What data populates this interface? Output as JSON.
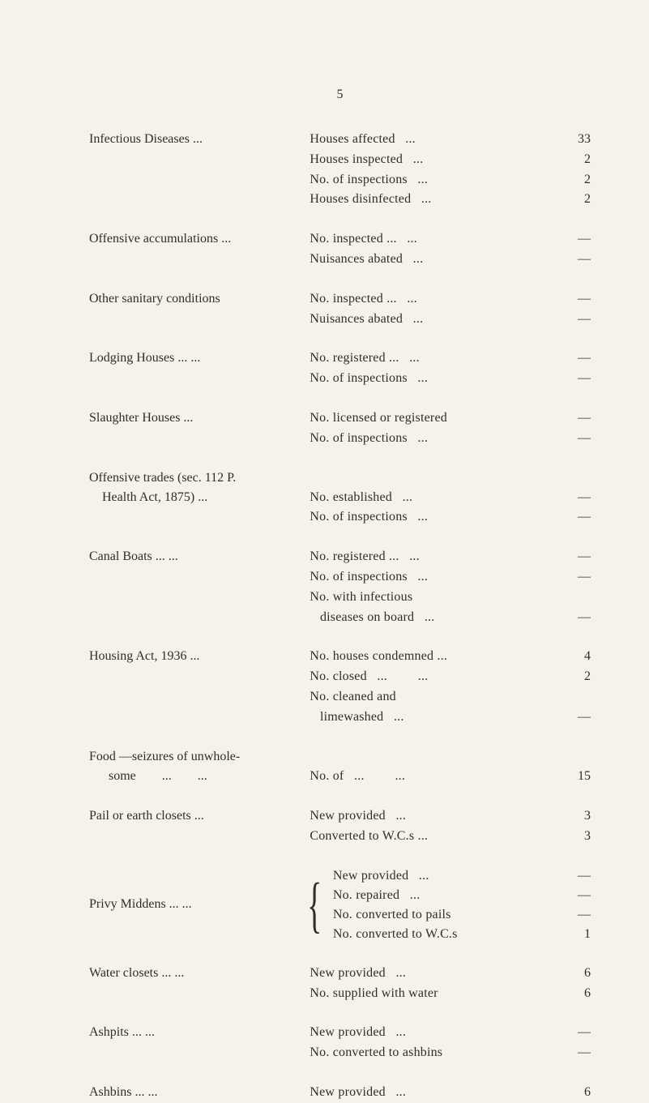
{
  "page_number": "5",
  "sections": [
    {
      "left": "Infectious Diseases",
      "left_trail": "...",
      "lines": [
        {
          "label": "Houses affected",
          "trail": "...",
          "value": "33"
        },
        {
          "label": "Houses inspected",
          "trail": "...",
          "value": "2"
        },
        {
          "label": "No. of inspections",
          "trail": "...",
          "value": "2"
        },
        {
          "label": "Houses disinfected",
          "trail": "...",
          "value": "2"
        }
      ]
    },
    {
      "left": "Offensive accumulations ...",
      "left_trail": "",
      "lines": [
        {
          "label": "No. inspected ...",
          "trail": "...",
          "value": "—"
        },
        {
          "label": "Nuisances abated",
          "trail": "...",
          "value": "—"
        }
      ]
    },
    {
      "left": "Other sanitary conditions",
      "left_trail": "",
      "lines": [
        {
          "label": "No. inspected ...",
          "trail": "...",
          "value": "—"
        },
        {
          "label": "Nuisances abated",
          "trail": "...",
          "value": "—"
        }
      ]
    },
    {
      "left": "Lodging Houses ...",
      "left_trail": "...",
      "lines": [
        {
          "label": "No. registered ...",
          "trail": "...",
          "value": "—"
        },
        {
          "label": "No. of inspections",
          "trail": "...",
          "value": "—"
        }
      ]
    },
    {
      "left": "Slaughter Houses",
      "left_trail": "...",
      "lines": [
        {
          "label": "No. licensed or registered",
          "trail": "",
          "value": "—"
        },
        {
          "label": "No. of inspections",
          "trail": "...",
          "value": "—"
        }
      ]
    },
    {
      "left": "Offensive trades (sec. 112 P.\n    Health Act, 1875) ...",
      "left_trail": "",
      "multiline_left": true,
      "lines": [
        {
          "label": "No. established",
          "trail": "...",
          "value": "—"
        },
        {
          "label": "No. of inspections",
          "trail": "...",
          "value": "—"
        }
      ],
      "top_spacer": true
    },
    {
      "left": "Canal Boats",
      "left_trail": "...         ...",
      "lines": [
        {
          "label": "No. registered ...",
          "trail": "...",
          "value": "—"
        },
        {
          "label": "No. of inspections",
          "trail": "...",
          "value": "—"
        },
        {
          "label": "No. with infectious",
          "trail": "",
          "value": ""
        },
        {
          "label": "   diseases on board",
          "trail": "...",
          "value": "—"
        }
      ]
    },
    {
      "left": "Housing Act, 1936",
      "left_trail": "...",
      "lines": [
        {
          "label": "No. houses condemned ...",
          "trail": "",
          "value": "4"
        },
        {
          "label": "No. closed",
          "trail": "...         ...",
          "value": "2"
        },
        {
          "label": "No. cleaned and",
          "trail": "",
          "value": ""
        },
        {
          "label": "   limewashed",
          "trail": "...",
          "value": "—"
        }
      ]
    },
    {
      "left": "Food —seizures of unwhole-\n      some        ...        ...",
      "left_trail": "",
      "multiline_left": true,
      "lines": [
        {
          "label": "No. of",
          "trail": "...         ...",
          "value": "15"
        }
      ],
      "top_spacer": true
    },
    {
      "left": "Pail or earth closets",
      "left_trail": "...",
      "lines": [
        {
          "label": "New provided",
          "trail": "...",
          "value": "3"
        },
        {
          "label": "Converted to W.C.s ...",
          "trail": "",
          "value": "3"
        }
      ]
    },
    {
      "left": "Privy Middens   ...",
      "left_trail": "...",
      "brace": true,
      "lines": [
        {
          "label": "New provided",
          "trail": "...",
          "value": "—"
        },
        {
          "label": "No. repaired",
          "trail": "...",
          "value": "—"
        },
        {
          "label": "No. converted to pails",
          "trail": "",
          "value": "—"
        },
        {
          "label": "No. converted to W.C.s",
          "trail": "",
          "value": "1"
        }
      ]
    },
    {
      "left": "Water closets",
      "left_trail": "...         ...",
      "lines": [
        {
          "label": "New provided",
          "trail": "...",
          "value": "6"
        },
        {
          "label": "No. supplied with water",
          "trail": "",
          "value": "6"
        }
      ]
    },
    {
      "left": "Ashpits",
      "left_trail": "...         ...",
      "lines": [
        {
          "label": "New provided",
          "trail": "...",
          "value": "—"
        },
        {
          "label": "No. converted to ashbins",
          "trail": "",
          "value": "—"
        }
      ]
    },
    {
      "left": "Ashbins",
      "left_trail": "...         ...",
      "lines": [
        {
          "label": "New provided",
          "trail": "...",
          "value": "6"
        }
      ]
    }
  ]
}
